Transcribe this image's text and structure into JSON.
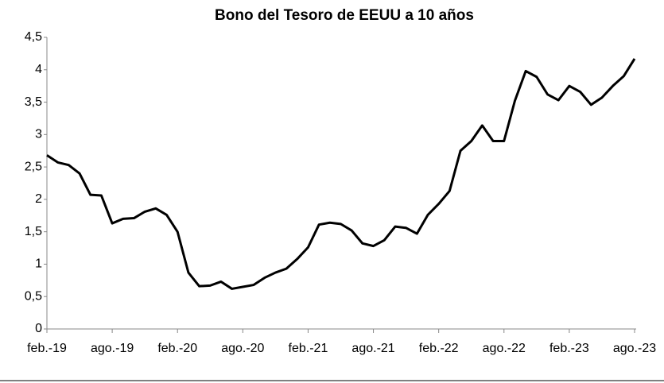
{
  "chart_data": {
    "type": "line",
    "title": "Bono del Tesoro de EEUU a 10 años",
    "categories": [
      "feb.-19",
      null,
      null,
      null,
      null,
      null,
      "ago.-19",
      null,
      null,
      null,
      null,
      null,
      "feb.-20",
      null,
      null,
      null,
      null,
      null,
      "ago.-20",
      null,
      null,
      null,
      null,
      null,
      "feb.-21",
      null,
      null,
      null,
      null,
      null,
      "ago.-21",
      null,
      null,
      null,
      null,
      null,
      "feb.-22",
      null,
      null,
      null,
      null,
      null,
      "ago.-22",
      null,
      null,
      null,
      null,
      null,
      "feb.-23",
      null,
      null,
      null,
      null,
      null,
      "ago.-23"
    ],
    "values": [
      2.68,
      2.57,
      2.53,
      2.4,
      2.07,
      2.06,
      1.63,
      1.7,
      1.71,
      1.81,
      1.86,
      1.76,
      1.5,
      0.87,
      0.66,
      0.67,
      0.73,
      0.62,
      0.65,
      0.68,
      0.79,
      0.87,
      0.93,
      1.08,
      1.26,
      1.61,
      1.64,
      1.62,
      1.52,
      1.32,
      1.28,
      1.37,
      1.58,
      1.56,
      1.47,
      1.76,
      1.93,
      2.13,
      2.75,
      2.9,
      3.14,
      2.9,
      2.9,
      3.52,
      3.98,
      3.89,
      3.62,
      3.53,
      3.75,
      3.66,
      3.46,
      3.57,
      3.75,
      3.9,
      4.17
    ],
    "color": "#000000",
    "ylim": [
      0,
      4.5
    ],
    "yticks": [
      0,
      {
        "value": 0.5,
        "label": "0,5"
      },
      1,
      {
        "value": 1.5,
        "label": "1,5"
      },
      2,
      {
        "value": 2.5,
        "label": "2,5"
      },
      3,
      {
        "value": 3.5,
        "label": "3,5"
      },
      4,
      {
        "value": 4.5,
        "label": "4,5"
      }
    ],
    "grid": false
  }
}
